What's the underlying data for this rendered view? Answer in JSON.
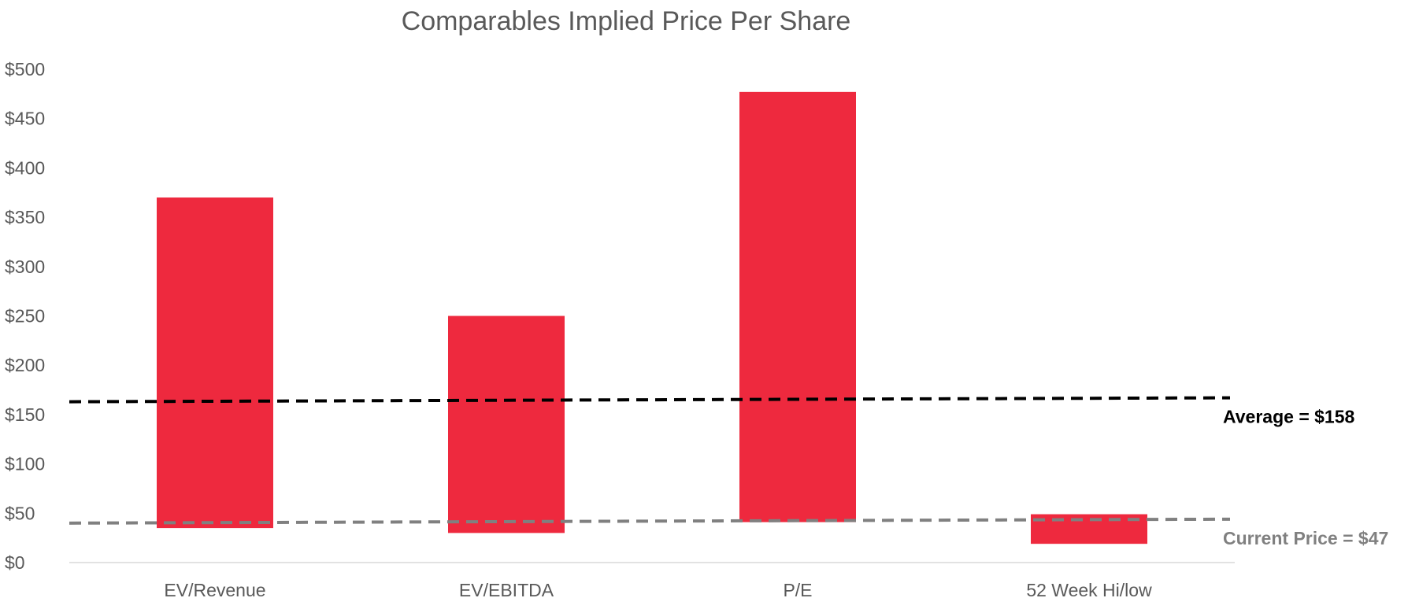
{
  "chart_data": {
    "type": "bar",
    "subtype": "floating-range",
    "title": "Comparables Implied Price Per Share",
    "xlabel": "",
    "ylabel": "",
    "categories": [
      "EV/Revenue",
      "EV/EBITDA",
      "P/E",
      "52 Week Hi/low"
    ],
    "series": [
      {
        "color": "#EE293E",
        "ranges": [
          {
            "low": 35,
            "high": 370
          },
          {
            "low": 30,
            "high": 250
          },
          {
            "low": 41,
            "high": 477
          },
          {
            "low": 19,
            "high": 49
          }
        ]
      }
    ],
    "ylim": [
      0,
      500
    ],
    "y_ticks": [
      0,
      50,
      100,
      150,
      200,
      250,
      300,
      350,
      400,
      450,
      500
    ],
    "y_tick_labels": [
      "$0",
      "$50",
      "$100",
      "$150",
      "$200",
      "$250",
      "$300",
      "$350",
      "$400",
      "$450",
      "$500"
    ],
    "grid": false,
    "legend": "none",
    "reference_lines": [
      {
        "label": "Average = $158",
        "y_start": 163,
        "y_end": 167,
        "color": "#000000",
        "style": "dashed"
      },
      {
        "label": "Current Price = $47",
        "y_start": 40,
        "y_end": 44,
        "color": "#808080",
        "style": "dashed"
      }
    ],
    "axis_color": "#D9D9D9",
    "text_color": "#595959"
  }
}
